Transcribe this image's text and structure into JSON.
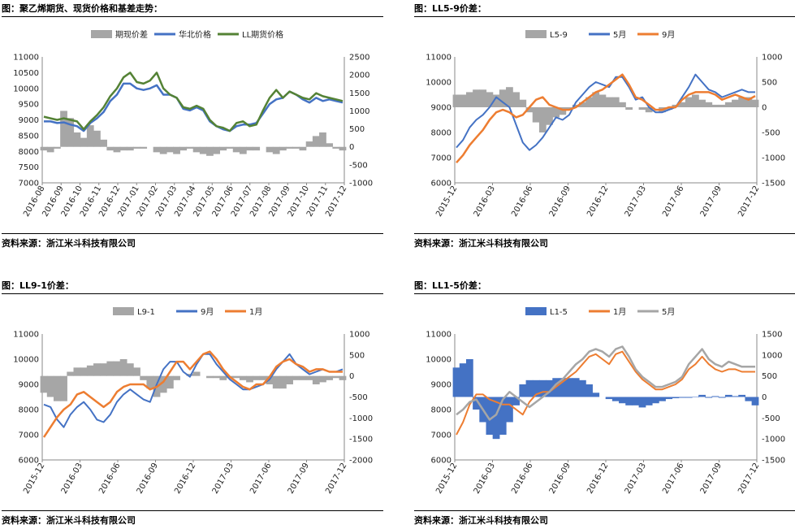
{
  "panels": [
    {
      "title": "图：聚乙烯期货、现货价格和基差走势：",
      "source": "资料来源：浙江米斗科技有限公司"
    },
    {
      "title": "图：LL5-9价差：",
      "source": "资料来源：浙江米斗科技有限公司"
    },
    {
      "title": "图：LL9-1价差：",
      "source": "资料来源：浙江米斗科技有限公司"
    },
    {
      "title": "图：LL1-5价差：",
      "source": "资料来源：浙江米斗科技有限公司"
    }
  ],
  "chart_data": [
    {
      "id": "c1",
      "type": "line",
      "left_axis": {
        "min": 7000,
        "max": 11000,
        "ticks": [
          "11000",
          "10500",
          "10000",
          "9500",
          "9000",
          "8500",
          "8000",
          "7500",
          "7000"
        ]
      },
      "right_axis": {
        "min": -1000,
        "max": 2500,
        "ticks": [
          "2500",
          "2000",
          "1500",
          "1000",
          "500",
          "0",
          "-500",
          "-1000"
        ]
      },
      "x_labels": [
        "2016-08",
        "2016-09",
        "2016-10",
        "2016-11",
        "2016-12",
        "2017-01",
        "2017-02",
        "2017-03",
        "2017-04",
        "2017-05",
        "2017-06",
        "2017-07",
        "2017-08",
        "2017-09",
        "2017-10",
        "2017-11",
        "2017-12"
      ],
      "series": [
        {
          "name": "期现价差",
          "kind": "area",
          "axis": "right",
          "color": "#a6a6a6",
          "values": [
            -100,
            -150,
            -50,
            1000,
            800,
            400,
            250,
            600,
            450,
            200,
            -100,
            -150,
            -100,
            -100,
            -50,
            -50,
            0,
            -150,
            -200,
            -150,
            -200,
            -100,
            -50,
            -150,
            -200,
            -250,
            -200,
            -100,
            -50,
            -150,
            -200,
            -100,
            -100,
            0,
            -150,
            -200,
            -100,
            -50,
            -50,
            -100,
            150,
            300,
            400,
            100,
            -50,
            -100
          ]
        },
        {
          "name": "华北价格",
          "kind": "line",
          "axis": "left",
          "color": "#4472c4",
          "values": [
            8950,
            8950,
            8900,
            8920,
            8850,
            8800,
            8650,
            8900,
            9050,
            9250,
            9600,
            9800,
            10150,
            10150,
            10000,
            9950,
            10000,
            10100,
            9800,
            9800,
            9700,
            9350,
            9300,
            9400,
            9300,
            8950,
            8800,
            8700,
            8650,
            8800,
            8850,
            8850,
            8900,
            9200,
            9500,
            9650,
            9700,
            9900,
            9800,
            9650,
            9550,
            9700,
            9600,
            9650,
            9600,
            9550
          ]
        },
        {
          "name": "LL期货价格",
          "kind": "line",
          "axis": "left",
          "color": "#548235",
          "values": [
            9100,
            9050,
            9000,
            9050,
            9000,
            8950,
            8700,
            8950,
            9150,
            9400,
            9750,
            10000,
            10350,
            10500,
            10200,
            10150,
            10250,
            10500,
            10000,
            9800,
            9700,
            9400,
            9350,
            9450,
            9350,
            9000,
            8800,
            8750,
            8650,
            8900,
            8950,
            8800,
            8850,
            9300,
            9700,
            9950,
            9700,
            9900,
            9800,
            9700,
            9650,
            9850,
            9750,
            9700,
            9650,
            9600
          ]
        }
      ]
    },
    {
      "id": "c2",
      "type": "line",
      "left_axis": {
        "min": 6000,
        "max": 11000,
        "ticks": [
          "11000",
          "10000",
          "9000",
          "8000",
          "7000",
          "6000"
        ]
      },
      "right_axis": {
        "min": -1500,
        "max": 1000,
        "ticks": [
          "1000",
          "500",
          "0",
          "-500",
          "-1000",
          "-1500"
        ]
      },
      "x_labels": [
        "2015-12",
        "2016-03",
        "2016-06",
        "2016-09",
        "2016-12",
        "2017-03",
        "2017-06",
        "2017-09",
        "2017-12"
      ],
      "series": [
        {
          "name": "L5-9",
          "kind": "area",
          "axis": "right",
          "color": "#a6a6a6",
          "values": [
            250,
            250,
            300,
            350,
            350,
            300,
            250,
            350,
            400,
            300,
            150,
            -100,
            -300,
            -500,
            -350,
            -200,
            -150,
            -50,
            50,
            100,
            200,
            300,
            250,
            200,
            200,
            100,
            -50,
            0,
            -50,
            -100,
            0,
            -100,
            -50,
            50,
            100,
            200,
            250,
            150,
            100,
            50,
            50,
            100,
            150,
            200,
            200,
            150
          ]
        },
        {
          "name": "5月",
          "kind": "line",
          "axis": "left",
          "color": "#4472c4",
          "values": [
            7400,
            7700,
            8200,
            8500,
            8700,
            9000,
            9400,
            9200,
            9000,
            8300,
            7600,
            7300,
            7500,
            7800,
            8200,
            8600,
            8500,
            8700,
            9200,
            9500,
            9800,
            10000,
            9900,
            9800,
            10200,
            10200,
            9800,
            9300,
            9400,
            9000,
            8800,
            8800,
            8900,
            9000,
            9400,
            9800,
            10300,
            10000,
            9700,
            9600,
            9400,
            9500,
            9600,
            9700,
            9600,
            9600
          ]
        },
        {
          "name": "9月",
          "kind": "line",
          "axis": "left",
          "color": "#ed7d31",
          "values": [
            6800,
            7100,
            7500,
            7800,
            8100,
            8500,
            8800,
            8900,
            8800,
            8600,
            8700,
            9000,
            9300,
            9400,
            9100,
            9000,
            8900,
            8900,
            9000,
            9200,
            9400,
            9600,
            9700,
            9900,
            10100,
            10300,
            9900,
            9400,
            9300,
            9100,
            8900,
            8900,
            9000,
            9000,
            9300,
            9500,
            9600,
            9600,
            9600,
            9500,
            9300,
            9400,
            9500,
            9400,
            9300,
            9450
          ]
        }
      ]
    },
    {
      "id": "c3",
      "type": "line",
      "left_axis": {
        "min": 6000,
        "max": 11000,
        "ticks": [
          "11000",
          "10000",
          "9000",
          "8000",
          "7000",
          "6000"
        ]
      },
      "right_axis": {
        "min": -2000,
        "max": 1000,
        "ticks": [
          "1000",
          "500",
          "0",
          "-500",
          "-1000",
          "-1500",
          "-2000"
        ]
      },
      "x_labels": [
        "2015-12",
        "2016-03",
        "2016-06",
        "2016-09",
        "2016-12",
        "2017-03",
        "2017-06",
        "2017-09",
        "2017-12"
      ],
      "series": [
        {
          "name": "L9-1",
          "kind": "area",
          "axis": "right",
          "color": "#a6a6a6",
          "values": [
            -400,
            -500,
            -600,
            -600,
            100,
            200,
            200,
            250,
            300,
            300,
            350,
            350,
            400,
            300,
            200,
            -100,
            -300,
            -500,
            -400,
            -300,
            -100,
            0,
            50,
            100,
            0,
            -50,
            -50,
            -100,
            -50,
            -50,
            -100,
            -150,
            -100,
            -100,
            -200,
            -300,
            -300,
            -200,
            -100,
            -100,
            -100,
            -200,
            -150,
            -100,
            -50,
            -100
          ]
        },
        {
          "name": "9月",
          "kind": "line",
          "axis": "left",
          "color": "#4472c4",
          "values": [
            8200,
            8100,
            7600,
            7300,
            7800,
            8100,
            8300,
            8000,
            7600,
            7500,
            7800,
            8300,
            8600,
            8800,
            8600,
            8400,
            8300,
            9000,
            9600,
            9900,
            9900,
            9500,
            9300,
            9800,
            10200,
            10200,
            9800,
            9500,
            9200,
            9000,
            8800,
            8800,
            8900,
            9000,
            9200,
            9600,
            9900,
            10200,
            9800,
            9600,
            9400,
            9500,
            9600,
            9500,
            9500,
            9600
          ]
        },
        {
          "name": "1月",
          "kind": "line",
          "axis": "left",
          "color": "#ed7d31",
          "values": [
            6900,
            7300,
            7700,
            8000,
            8200,
            8600,
            8700,
            8500,
            8300,
            8100,
            8300,
            8700,
            8900,
            9000,
            9000,
            9000,
            8800,
            8900,
            9100,
            9500,
            9900,
            9900,
            9600,
            9900,
            10200,
            10300,
            10000,
            9600,
            9300,
            9100,
            8900,
            8800,
            9000,
            9000,
            9300,
            9700,
            9900,
            10000,
            9800,
            9700,
            9500,
            9600,
            9600,
            9500,
            9500,
            9500
          ]
        }
      ]
    },
    {
      "id": "c4",
      "type": "line",
      "left_axis": {
        "min": 6000,
        "max": 11000,
        "ticks": [
          "11000",
          "10000",
          "9000",
          "8000",
          "7000",
          "6000"
        ]
      },
      "right_axis": {
        "min": -1500,
        "max": 1500,
        "ticks": [
          "1500",
          "1000",
          "500",
          "0",
          "-500",
          "-1000",
          "-1500"
        ]
      },
      "x_labels": [
        "2015-12",
        "2016-03",
        "2016-06",
        "2016-09",
        "2016-12",
        "2017-03",
        "2017-06",
        "2017-09",
        "2017-12"
      ],
      "series": [
        {
          "name": "L1-5",
          "kind": "area",
          "axis": "right",
          "color": "#4472c4",
          "values": [
            700,
            800,
            900,
            -300,
            -600,
            -900,
            -1000,
            -900,
            -600,
            -200,
            300,
            400,
            400,
            400,
            400,
            450,
            450,
            450,
            450,
            400,
            300,
            100,
            0,
            -50,
            -100,
            -150,
            -200,
            -200,
            -250,
            -200,
            -150,
            -100,
            -50,
            -30,
            -20,
            -20,
            -10,
            50,
            -20,
            20,
            -20,
            50,
            20,
            50,
            -100,
            -200
          ]
        },
        {
          "name": "1月",
          "kind": "line",
          "axis": "left",
          "color": "#ed7d31",
          "values": [
            7000,
            7500,
            8200,
            8600,
            8600,
            8400,
            8300,
            8200,
            8200,
            8000,
            7800,
            8300,
            8600,
            8700,
            8700,
            8900,
            9100,
            9300,
            9500,
            9800,
            10100,
            10200,
            10000,
            9800,
            10200,
            10300,
            9900,
            9500,
            9200,
            9000,
            8800,
            8800,
            8900,
            9000,
            9200,
            9600,
            9800,
            10100,
            9800,
            9600,
            9500,
            9600,
            9600,
            9500,
            9500,
            9500
          ]
        },
        {
          "name": "5月",
          "kind": "line",
          "axis": "left",
          "color": "#a6a6a6",
          "values": [
            7800,
            8000,
            8300,
            8400,
            8000,
            7600,
            7800,
            8400,
            8700,
            8500,
            8300,
            8100,
            8300,
            8500,
            8700,
            9000,
            9200,
            9500,
            9800,
            10000,
            10300,
            10400,
            10300,
            10100,
            10400,
            10500,
            10100,
            9600,
            9300,
            9100,
            8900,
            8900,
            9000,
            9100,
            9300,
            9800,
            10100,
            10400,
            10000,
            9800,
            9700,
            9900,
            9800,
            9700,
            9700,
            9700
          ]
        }
      ]
    }
  ]
}
